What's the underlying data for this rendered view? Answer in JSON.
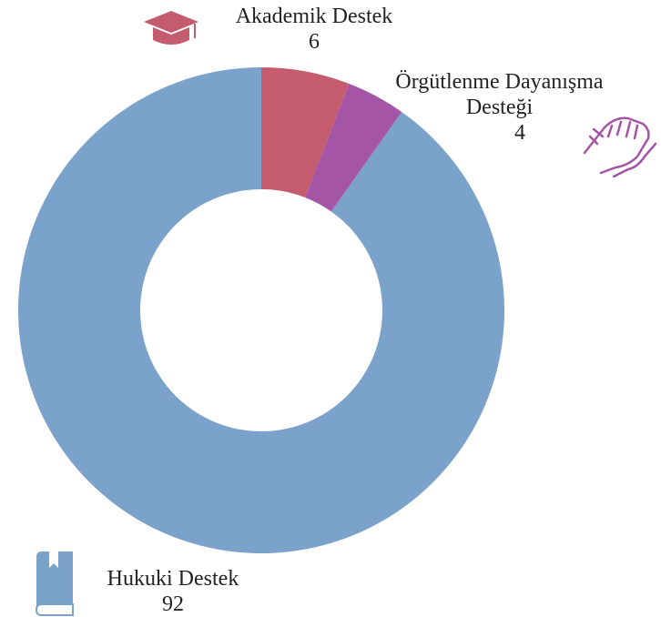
{
  "chart_data": {
    "type": "pie",
    "hole": true,
    "categories": [
      "Akademik Destek",
      "Örgütlenme Dayanışma Desteği",
      "Hukuki Destek"
    ],
    "values": [
      6,
      4,
      92
    ],
    "colors": [
      "#c45c6e",
      "#a555a6",
      "#7ba2cb"
    ]
  }
}
